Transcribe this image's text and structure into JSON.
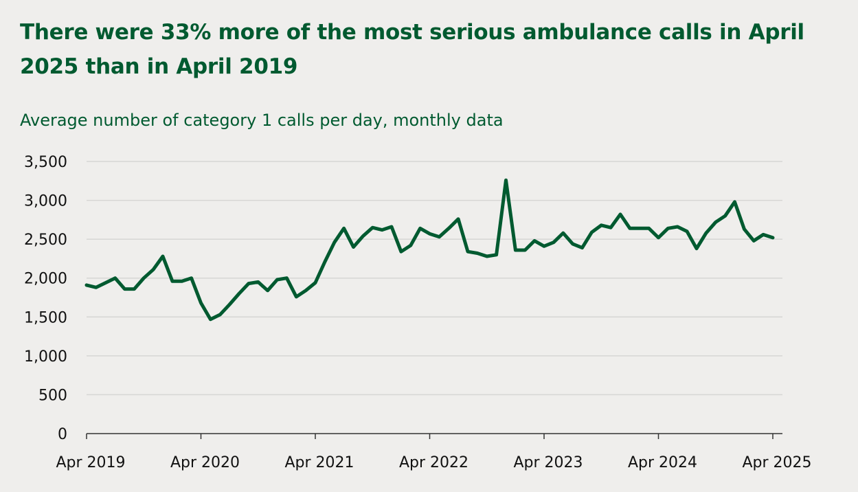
{
  "title": "There were 33% more of the most serious ambulance calls in April 2025 than in April 2019",
  "subtitle": "Average number of category 1 calls per day, monthly data",
  "colors": {
    "background": "#efeeec",
    "title": "#005a30",
    "line": "#005a30",
    "grid": "#d6d6d4",
    "axis": "#333333"
  },
  "chart_data": {
    "type": "line",
    "title": "There were 33% more of the most serious ambulance calls in April 2025 than in April 2019",
    "subtitle": "Average number of category 1 calls per day, monthly data",
    "xlabel": "",
    "ylabel": "",
    "ylim": [
      0,
      3500
    ],
    "yticks": [
      0,
      500,
      1000,
      1500,
      2000,
      2500,
      3000,
      3500
    ],
    "ytick_labels": [
      "0",
      "500",
      "1,000",
      "1,500",
      "2,000",
      "2,500",
      "3,000",
      "3,500"
    ],
    "xtick_labels": [
      "Apr 2019",
      "Apr 2020",
      "Apr 2021",
      "Apr 2022",
      "Apr 2023",
      "Apr 2024",
      "Apr 2025"
    ],
    "grid": true,
    "x_start": "Apr 2019",
    "x_frequency": "monthly",
    "series": [
      {
        "values": [
          1910,
          1880,
          1940,
          2000,
          1860,
          1860,
          2000,
          2110,
          2280,
          1960,
          1960,
          2000,
          1680,
          1470,
          1530,
          1660,
          1800,
          1930,
          1950,
          1840,
          1980,
          2000,
          1760,
          1840,
          1940,
          2210,
          2460,
          2640,
          2400,
          2540,
          2650,
          2620,
          2660,
          2340,
          2420,
          2640,
          2570,
          2530,
          2640,
          2760,
          2340,
          2320,
          2280,
          2300,
          3260,
          2360,
          2360,
          2480,
          2410,
          2460,
          2580,
          2440,
          2390,
          2590,
          2680,
          2650,
          2820,
          2640,
          2640,
          2640,
          2520,
          2640,
          2660,
          2600,
          2380,
          2580,
          2720,
          2800,
          2980,
          2630,
          2480,
          2560,
          2520
        ]
      }
    ]
  }
}
